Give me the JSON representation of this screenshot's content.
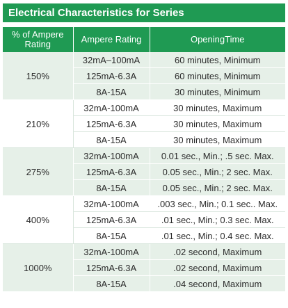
{
  "title": "Electrical Characteristics for Series",
  "columns": [
    "% of Ampere Rating",
    "Ampere Rating",
    "OpeningTime"
  ],
  "groups": [
    {
      "percent": "150%",
      "rows": [
        {
          "rating": "32mA–100mA",
          "time": "60 minutes, Minimum"
        },
        {
          "rating": "125mA-6.3A",
          "time": "60 minutes, Minimum"
        },
        {
          "rating": "8A-15A",
          "time": "30 minutes, Minimum"
        }
      ]
    },
    {
      "percent": "210%",
      "rows": [
        {
          "rating": "32mA-100mA",
          "time": "30 minutes, Maximum"
        },
        {
          "rating": "125mA-6.3A",
          "time": "30 minutes, Maximum"
        },
        {
          "rating": "8A-15A",
          "time": "30 minutes, Maximum"
        }
      ]
    },
    {
      "percent": "275%",
      "rows": [
        {
          "rating": "32mA-100mA",
          "time": "0.01 sec., Min.; .5 sec. Max."
        },
        {
          "rating": "125mA-6.3A",
          "time": "0.05 sec., Min.; 2 sec. Max."
        },
        {
          "rating": "8A-15A",
          "time": "0.05 sec., Min.; 2 sec. Max."
        }
      ]
    },
    {
      "percent": "400%",
      "rows": [
        {
          "rating": "32mA-100mA",
          "time": ".003 sec., Min.; 0.1 sec.. Max."
        },
        {
          "rating": "125mA-6.3A",
          "time": ".01 sec., Min.; 0.3 sec. Max."
        },
        {
          "rating": "8A-15A",
          "time": ".01 sec., Min.; 0.4 sec. Max."
        }
      ]
    },
    {
      "percent": "1000%",
      "rows": [
        {
          "rating": "32mA-100mA",
          "time": ".02 second, Maximum"
        },
        {
          "rating": "125mA-6.3A",
          "time": ".02 second, Maximum"
        },
        {
          "rating": "8A-15A",
          "time": ".04 second, Maximum"
        }
      ]
    }
  ]
}
